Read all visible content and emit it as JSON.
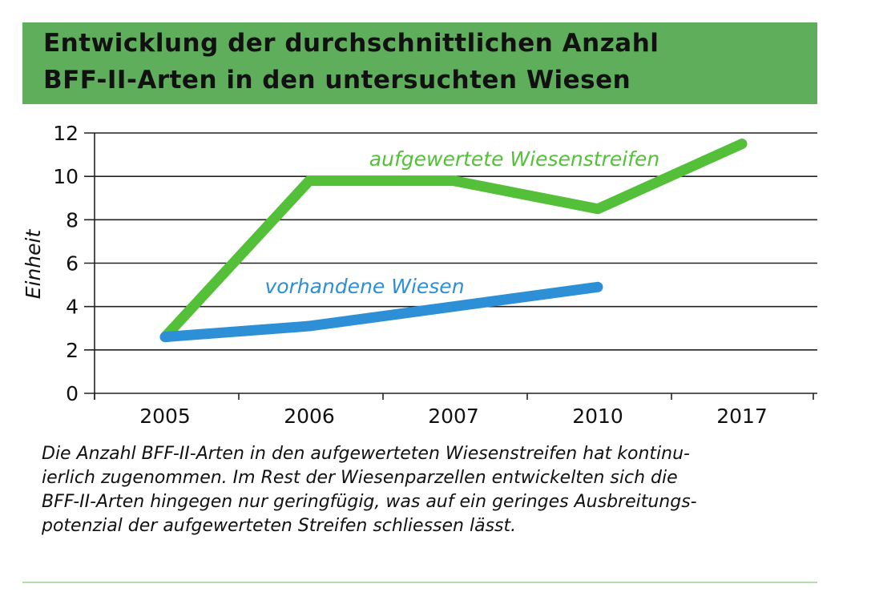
{
  "title": [
    "Entwicklung der durchschnittlichen Anzahl",
    "BFF-II-Arten in den untersuchten Wiesen"
  ],
  "chart_data": {
    "type": "line",
    "categories": [
      "2005",
      "2006",
      "2007",
      "2010",
      "2017"
    ],
    "ylabel": "Einheit",
    "ylim": [
      0,
      12
    ],
    "yticks": [
      "0",
      "2",
      "4",
      "6",
      "8",
      "10",
      "12"
    ],
    "grid": true,
    "series": [
      {
        "name": "aufgewertete Wiesenstreifen",
        "color": "#54bf38",
        "values": [
          2.6,
          9.8,
          9.8,
          8.5,
          11.5
        ]
      },
      {
        "name": "vorhandene Wiesen",
        "color": "#2d8fd5",
        "values": [
          2.6,
          3.1,
          4.0,
          4.9,
          null
        ]
      }
    ]
  },
  "caption": [
    "Die Anzahl BFF-II-Arten in den aufgewerteten Wiesenstreifen hat kontinu-",
    "ierlich zugenommen. Im Rest der Wiesenparzellen entwickelten sich die",
    "BFF-II-Arten hingegen nur geringfügig, was auf ein geringes Ausbreitungs-",
    "potenzial der aufgewerteten Streifen schliessen lässt."
  ]
}
